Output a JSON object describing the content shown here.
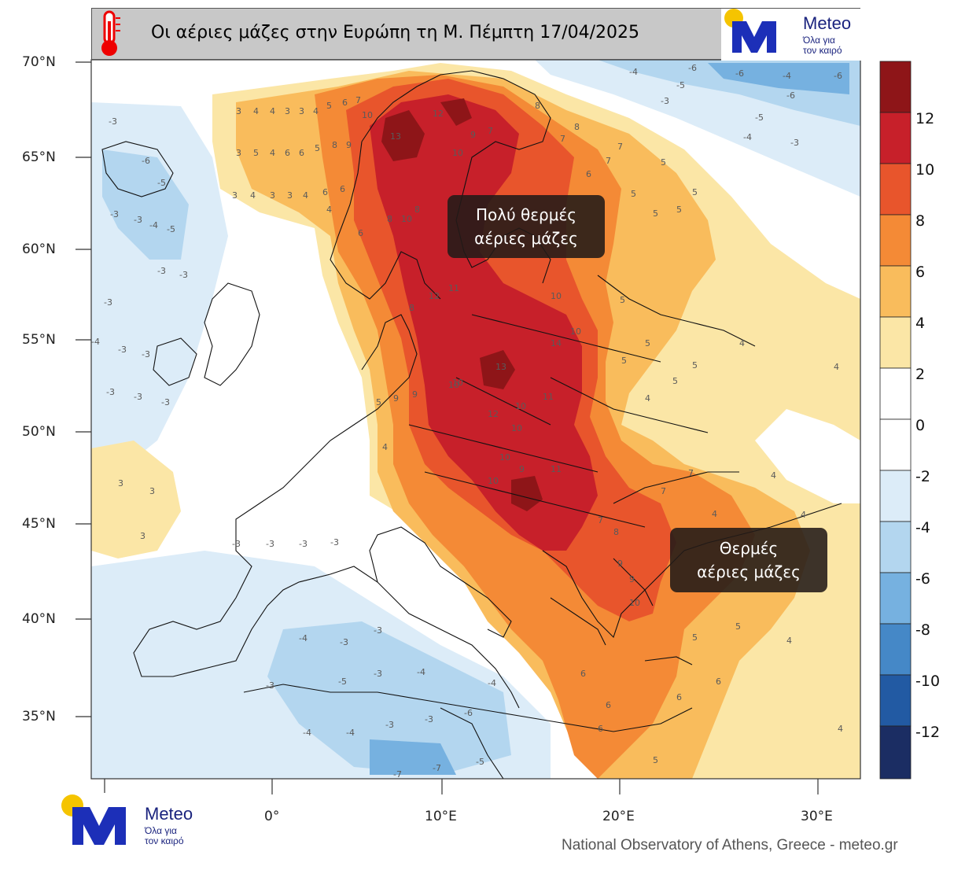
{
  "title": "Οι αέριες μάζες στην Ευρώπη τη Μ. Πέμπτη 17/04/2025",
  "brand": {
    "name": "Meteo",
    "tagline_line1": "Όλα για",
    "tagline_line2": "τον καιρό"
  },
  "credit": "National Observatory of Athens, Greece - meteo.gr",
  "callouts": {
    "very_warm": {
      "line1": "Πολύ θερμές",
      "line2": "αέριες μάζες"
    },
    "warm": {
      "line1": "Θερμές",
      "line2": "αέριες μάζες"
    }
  },
  "axes": {
    "lat_labels": [
      "70°N",
      "65°N",
      "60°N",
      "55°N",
      "50°N",
      "45°N",
      "40°N",
      "35°N"
    ],
    "lon_labels": [
      "0°",
      "10°E",
      "20°E",
      "30°E"
    ]
  },
  "colorbar": {
    "labels": [
      "12",
      "10",
      "8",
      "6",
      "4",
      "2",
      "0",
      "-2",
      "-4",
      "-6",
      "-8",
      "-10",
      "-12"
    ],
    "colors": [
      "#8e1518",
      "#c7202a",
      "#e8552c",
      "#f48a36",
      "#f9bc5c",
      "#fbe6a6",
      "#ffffff",
      "#ffffff",
      "#dcecf8",
      "#b3d6ef",
      "#76b1e0",
      "#4588c7",
      "#225aa3",
      "#1b2d63"
    ]
  },
  "icons": {
    "thermometer": "thermometer-icon",
    "logo": "meteo-logo-icon"
  }
}
